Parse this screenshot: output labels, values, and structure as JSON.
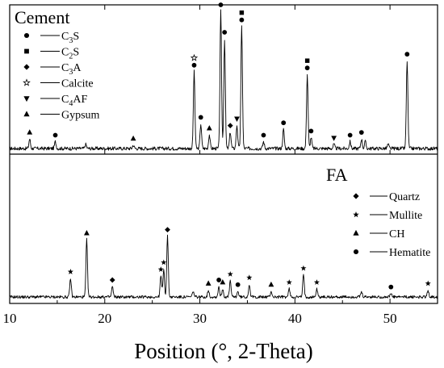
{
  "chart_data": {
    "type": "line",
    "xlabel": "Position (°, 2-Theta)",
    "xlim": [
      10,
      55
    ],
    "xticks": [
      10,
      20,
      30,
      40,
      50
    ],
    "tick_labels": [
      "10",
      "20",
      "30",
      "40",
      "50"
    ],
    "panels": [
      {
        "id": "cement",
        "title": "Cement",
        "legend_position": "top-left",
        "legend": [
          {
            "marker": "circle",
            "label": "C",
            "sub": "3",
            "label2": "S"
          },
          {
            "marker": "square",
            "label": "C",
            "sub": "2",
            "label2": "S"
          },
          {
            "marker": "diamond",
            "label": "C",
            "sub": "3",
            "label2": "A"
          },
          {
            "marker": "star-open",
            "label": "Calcite",
            "sub": "",
            "label2": ""
          },
          {
            "marker": "triangle-down",
            "label": "C",
            "sub": "4",
            "label2": "AF"
          },
          {
            "marker": "triangle-up",
            "label": "Gypsum",
            "sub": "",
            "label2": ""
          }
        ],
        "peaks": [
          {
            "x": 12.1,
            "h": 0.07
          },
          {
            "x": 14.8,
            "h": 0.05
          },
          {
            "x": 18.0,
            "h": 0.03
          },
          {
            "x": 23.0,
            "h": 0.025
          },
          {
            "x": 29.4,
            "h": 0.56
          },
          {
            "x": 30.1,
            "h": 0.18
          },
          {
            "x": 31.0,
            "h": 0.1
          },
          {
            "x": 32.2,
            "h": 1.0
          },
          {
            "x": 32.6,
            "h": 0.8
          },
          {
            "x": 33.2,
            "h": 0.12
          },
          {
            "x": 33.9,
            "h": 0.17
          },
          {
            "x": 34.4,
            "h": 0.89
          },
          {
            "x": 36.7,
            "h": 0.05
          },
          {
            "x": 38.8,
            "h": 0.14
          },
          {
            "x": 41.3,
            "h": 0.54
          },
          {
            "x": 41.7,
            "h": 0.08
          },
          {
            "x": 44.1,
            "h": 0.03
          },
          {
            "x": 45.8,
            "h": 0.05
          },
          {
            "x": 47.0,
            "h": 0.07
          },
          {
            "x": 47.4,
            "h": 0.05
          },
          {
            "x": 49.8,
            "h": 0.03
          },
          {
            "x": 51.8,
            "h": 0.64
          }
        ],
        "markers": [
          {
            "x": 12.1,
            "symbols": [
              "triangle-up"
            ]
          },
          {
            "x": 14.8,
            "symbols": [
              "circle"
            ]
          },
          {
            "x": 23.0,
            "symbols": [
              "triangle-up"
            ]
          },
          {
            "x": 29.4,
            "symbols": [
              "circle",
              "star-open"
            ]
          },
          {
            "x": 30.1,
            "symbols": [
              "circle"
            ]
          },
          {
            "x": 31.0,
            "symbols": [
              "triangle-up"
            ]
          },
          {
            "x": 32.2,
            "symbols": [
              "circle",
              "square"
            ]
          },
          {
            "x": 32.6,
            "symbols": [
              "circle"
            ]
          },
          {
            "x": 33.2,
            "symbols": [
              "diamond"
            ]
          },
          {
            "x": 33.9,
            "symbols": [
              "triangle-down"
            ]
          },
          {
            "x": 34.4,
            "symbols": [
              "circle",
              "square"
            ]
          },
          {
            "x": 36.7,
            "symbols": [
              "circle"
            ]
          },
          {
            "x": 38.8,
            "symbols": [
              "circle"
            ]
          },
          {
            "x": 41.3,
            "symbols": [
              "circle",
              "square"
            ]
          },
          {
            "x": 41.7,
            "symbols": [
              "circle"
            ]
          },
          {
            "x": 44.1,
            "symbols": [
              "triangle-down"
            ]
          },
          {
            "x": 45.8,
            "symbols": [
              "circle"
            ]
          },
          {
            "x": 47.0,
            "symbols": [
              "circle"
            ]
          },
          {
            "x": 51.8,
            "symbols": [
              "circle"
            ]
          }
        ]
      },
      {
        "id": "fa",
        "title": "FA",
        "legend_position": "right",
        "legend": [
          {
            "marker": "diamond",
            "label": "Quartz",
            "sub": "",
            "label2": ""
          },
          {
            "marker": "star",
            "label": "Mullite",
            "sub": "",
            "label2": ""
          },
          {
            "marker": "triangle-up",
            "label": "CH",
            "sub": "",
            "label2": ""
          },
          {
            "marker": "circle",
            "label": "Hematite",
            "sub": "",
            "label2": ""
          }
        ],
        "peaks": [
          {
            "x": 16.4,
            "h": 0.16
          },
          {
            "x": 18.1,
            "h": 0.49
          },
          {
            "x": 20.8,
            "h": 0.09
          },
          {
            "x": 25.9,
            "h": 0.18
          },
          {
            "x": 26.2,
            "h": 0.24
          },
          {
            "x": 26.6,
            "h": 0.52
          },
          {
            "x": 29.3,
            "h": 0.05
          },
          {
            "x": 30.9,
            "h": 0.06
          },
          {
            "x": 32.0,
            "h": 0.09
          },
          {
            "x": 32.4,
            "h": 0.07
          },
          {
            "x": 33.2,
            "h": 0.14
          },
          {
            "x": 34.0,
            "h": 0.05
          },
          {
            "x": 35.2,
            "h": 0.11
          },
          {
            "x": 37.5,
            "h": 0.05
          },
          {
            "x": 39.4,
            "h": 0.07
          },
          {
            "x": 40.9,
            "h": 0.19
          },
          {
            "x": 42.3,
            "h": 0.07
          },
          {
            "x": 47.0,
            "h": 0.04
          },
          {
            "x": 50.1,
            "h": 0.03
          },
          {
            "x": 54.0,
            "h": 0.06
          }
        ],
        "markers": [
          {
            "x": 16.4,
            "symbols": [
              "star"
            ]
          },
          {
            "x": 18.1,
            "symbols": [
              "triangle-up"
            ]
          },
          {
            "x": 20.8,
            "symbols": [
              "diamond"
            ]
          },
          {
            "x": 25.9,
            "symbols": [
              "star"
            ]
          },
          {
            "x": 26.2,
            "symbols": [
              "star"
            ]
          },
          {
            "x": 26.6,
            "symbols": [
              "diamond"
            ]
          },
          {
            "x": 30.9,
            "symbols": [
              "triangle-up"
            ]
          },
          {
            "x": 32.0,
            "symbols": [
              "circle"
            ]
          },
          {
            "x": 32.4,
            "symbols": [
              "triangle-up"
            ]
          },
          {
            "x": 33.2,
            "symbols": [
              "star"
            ]
          },
          {
            "x": 34.0,
            "symbols": [
              "circle"
            ]
          },
          {
            "x": 35.2,
            "symbols": [
              "star"
            ]
          },
          {
            "x": 37.5,
            "symbols": [
              "triangle-up"
            ]
          },
          {
            "x": 39.4,
            "symbols": [
              "star"
            ]
          },
          {
            "x": 40.9,
            "symbols": [
              "star"
            ]
          },
          {
            "x": 42.3,
            "symbols": [
              "star"
            ]
          },
          {
            "x": 50.1,
            "symbols": [
              "circle"
            ]
          },
          {
            "x": 54.0,
            "symbols": [
              "star"
            ]
          }
        ]
      }
    ]
  }
}
